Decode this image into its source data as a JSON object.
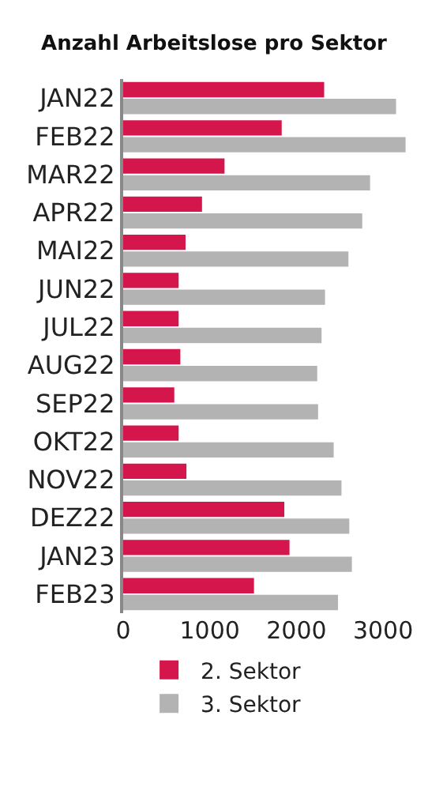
{
  "chart_data": {
    "type": "bar",
    "title": "Anzahl Arbeitslose pro Sektor",
    "orientation": "horizontal",
    "categories": [
      "JAN22",
      "FEB22",
      "MAR22",
      "APR22",
      "MAI22",
      "JUN22",
      "JUL22",
      "AUG22",
      "SEP22",
      "OKT22",
      "NOV22",
      "DEZ22",
      "JAN23",
      "FEB23"
    ],
    "series": [
      {
        "name": "2. Sektor",
        "color": "#d4164c",
        "values": [
          2320,
          1830,
          1170,
          910,
          720,
          640,
          640,
          660,
          590,
          640,
          730,
          1860,
          1920,
          1510
        ]
      },
      {
        "name": "3. Sektor",
        "color": "#b3b3b3",
        "values": [
          3150,
          3260,
          2850,
          2760,
          2600,
          2330,
          2290,
          2240,
          2250,
          2430,
          2520,
          2610,
          2640,
          2480
        ]
      }
    ],
    "xlim": [
      0,
      3300
    ],
    "xticks": [
      0,
      1000,
      2000,
      3000
    ],
    "grid": false,
    "legend": "bottom"
  }
}
